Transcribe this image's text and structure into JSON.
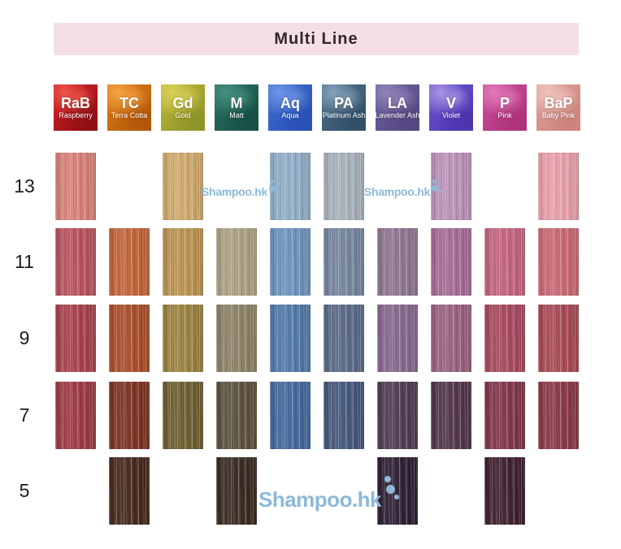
{
  "title": "Multi Line",
  "title_bar_color": "#f4dfe9",
  "watermark": {
    "text": "Shampoo.hk",
    "color": "#8cbad8"
  },
  "columns": [
    {
      "code": "RaB",
      "name": "Raspberry",
      "tile_base": "#d31f26",
      "tile_dark": "#8f1014",
      "tile_light": "#f0574a"
    },
    {
      "code": "TC",
      "name": "Terra Cotta",
      "tile_base": "#e07d1a",
      "tile_dark": "#b05708",
      "tile_light": "#f5a344"
    },
    {
      "code": "Gd",
      "name": "Gold",
      "tile_base": "#bdb93a",
      "tile_dark": "#8f9428",
      "tile_light": "#d9d058"
    },
    {
      "code": "M",
      "name": "Matt",
      "tile_base": "#2c7264",
      "tile_dark": "#174f45",
      "tile_light": "#44907e"
    },
    {
      "code": "Aq",
      "name": "Aqua",
      "tile_base": "#3f6fd0",
      "tile_dark": "#2a50b4",
      "tile_light": "#6d97e6"
    },
    {
      "code": "PA",
      "name": "Platinum Ash",
      "tile_base": "#4e6f8e",
      "tile_dark": "#324f68",
      "tile_light": "#87a3b8"
    },
    {
      "code": "LA",
      "name": "Lavender Ash",
      "tile_base": "#70619b",
      "tile_dark": "#544781",
      "tile_light": "#9184bb"
    },
    {
      "code": "V",
      "name": "Violet",
      "tile_base": "#6f55cf",
      "tile_dark": "#4d33ae",
      "tile_light": "#a795e4"
    },
    {
      "code": "P",
      "name": "Pink",
      "tile_base": "#cc4c98",
      "tile_dark": "#ad3379",
      "tile_light": "#e07cba"
    },
    {
      "code": "BaP",
      "name": "Baby Pink",
      "tile_base": "#dfa29b",
      "tile_dark": "#cb837c",
      "tile_light": "#eec4bd"
    }
  ],
  "levels": [
    "13",
    "11",
    "9",
    "7",
    "5"
  ],
  "chart_data": {
    "type": "table",
    "title": "Multi Line",
    "row_labels": [
      "13",
      "11",
      "9",
      "7",
      "5"
    ],
    "column_labels": [
      "RaB Raspberry",
      "TC Terra Cotta",
      "Gd Gold",
      "M Matt",
      "Aq Aqua",
      "PA Platinum Ash",
      "LA Lavender Ash",
      "V Violet",
      "P Pink",
      "BaP Baby Pink"
    ],
    "cells": [
      [
        "#d88078",
        null,
        "#cfa96d",
        null,
        "#90adc6",
        "#a8b1bb",
        null,
        "#bb92b8",
        null,
        "#e8a0aa"
      ],
      [
        "#b9525f",
        "#c26438",
        "#ba9350",
        "#aca284",
        "#6c93be",
        "#75859d",
        "#8e7590",
        "#a66c94",
        "#c4647e",
        "#c86974"
      ],
      [
        "#a7414d",
        "#a94e2b",
        "#9a8240",
        "#8c8266",
        "#5279a8",
        "#5a6a87",
        "#86688c",
        "#99617f",
        "#a8495f",
        "#a84a55"
      ],
      [
        "#9e3a44",
        "#7c3322",
        "#6c5f2f",
        "#5c5140",
        "#42689b",
        "#45587b",
        "#513b51",
        "#52354c",
        "#81364b",
        "#8a3847"
      ],
      [
        null,
        "#47291c",
        null,
        "#392b22",
        null,
        null,
        "#2e1f33",
        null,
        "#3f2130",
        null
      ]
    ]
  }
}
